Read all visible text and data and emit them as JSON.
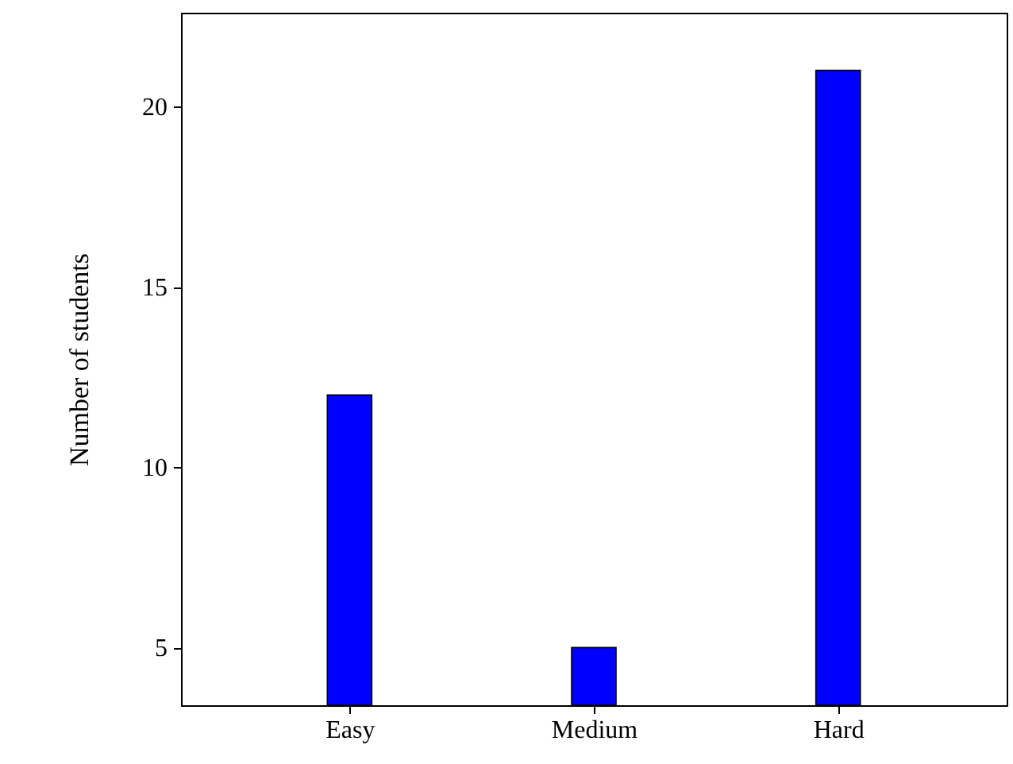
{
  "chart_data": {
    "type": "bar",
    "ylabel": "Number of students",
    "categories": [
      "Easy",
      "Medium",
      "Hard"
    ],
    "values": [
      12,
      5,
      21
    ],
    "color": "#0000ff",
    "ylim": [
      3.4,
      22.6
    ],
    "yticks": [
      5,
      10,
      15,
      20
    ],
    "grid": false
  }
}
